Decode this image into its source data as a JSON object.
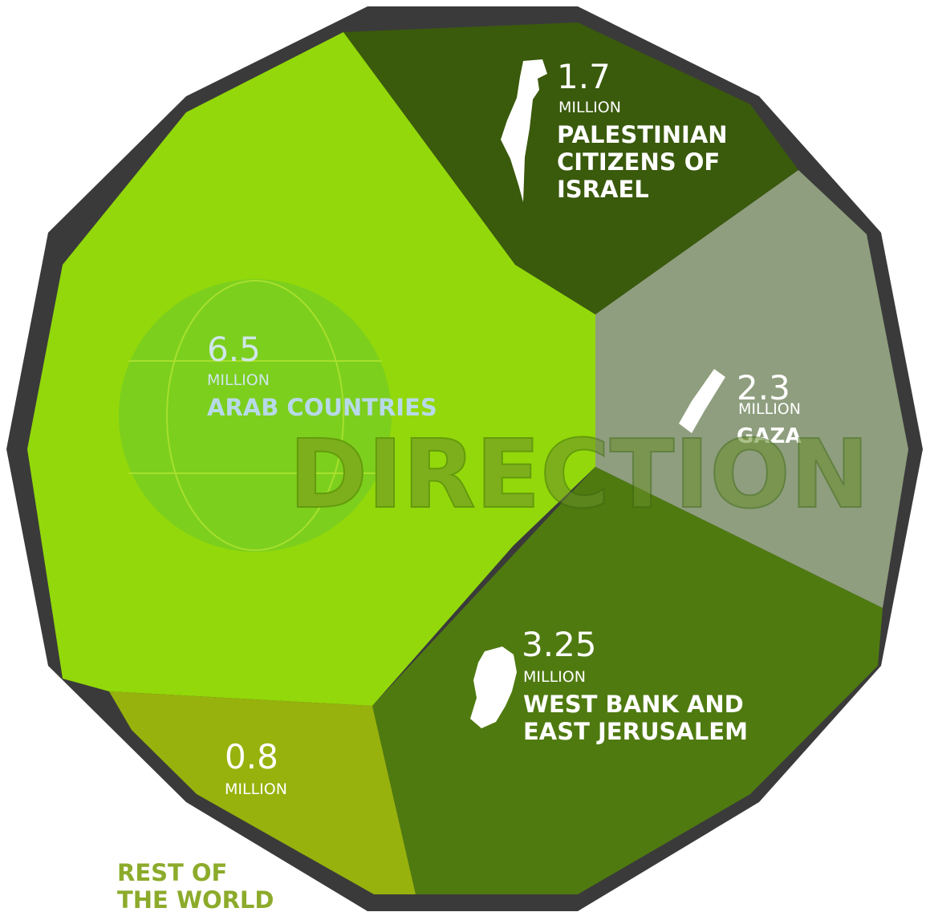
{
  "chart_data": {
    "type": "pie",
    "unit": "MILLION",
    "slices": [
      {
        "label": "PALESTINIAN CITIZENS OF ISRAEL",
        "label_lines": [
          "PALESTINIAN",
          "CITIZENS OF",
          "ISRAEL"
        ],
        "value": 1.7,
        "value_text": "1.7",
        "color": "#3a5a0c",
        "icon": "israel-map-icon"
      },
      {
        "label": "GAZA",
        "label_lines": [
          "GAZA"
        ],
        "value": 2.3,
        "value_text": "2.3",
        "color": "#8e9e7e",
        "icon": "gaza-map-icon"
      },
      {
        "label": "WEST BANK AND EAST JERUSALEM",
        "label_lines": [
          "WEST BANK AND",
          "EAST JERUSALEM"
        ],
        "value": 3.25,
        "value_text": "3.25",
        "color": "#4f7a10",
        "icon": "west-bank-map-icon"
      },
      {
        "label": "REST OF THE WORLD",
        "label_lines": [
          "REST OF",
          "THE WORLD"
        ],
        "value": 0.8,
        "value_text": "0.8",
        "color": "#97b20c",
        "label_color": "#8cab2b",
        "icon": ""
      },
      {
        "label": "ARAB COUNTRIES",
        "label_lines": [
          "ARAB COUNTRIES"
        ],
        "value": 6.5,
        "value_text": "6.5",
        "color": "#93d80a",
        "icon": ""
      }
    ],
    "border_color": "#3a3a3a"
  },
  "watermark": {
    "text": "DIRECTION"
  }
}
